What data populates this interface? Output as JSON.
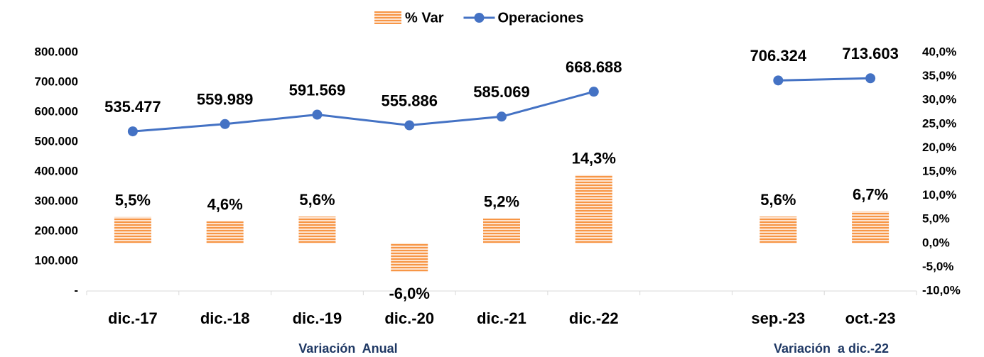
{
  "chart_data": {
    "type": "combo",
    "categories": [
      "dic.-17",
      "dic.-18",
      "dic.-19",
      "dic.-20",
      "dic.-21",
      "dic.-22",
      null,
      "sep.-23",
      "oct.-23"
    ],
    "series": [
      {
        "name": "% Var",
        "type": "bar",
        "axis": "y2",
        "color": "#f79646",
        "values": [
          5.5,
          4.6,
          5.6,
          -6.0,
          5.2,
          14.3,
          null,
          5.6,
          6.7
        ],
        "value_labels": [
          "5,5%",
          "4,6%",
          "5,6%",
          "-6,0%",
          "5,2%",
          "14,3%",
          null,
          "5,6%",
          "6,7%"
        ]
      },
      {
        "name": "Operaciones",
        "type": "line",
        "axis": "y",
        "color": "#4472c4",
        "values": [
          535477,
          559989,
          591569,
          555886,
          585069,
          668688,
          null,
          706324,
          713603
        ],
        "value_labels": [
          "535.477",
          "559.989",
          "591.569",
          "555.886",
          "585.069",
          "668.688",
          null,
          "706.324",
          "713.603"
        ]
      }
    ],
    "ylim": [
      0,
      800000
    ],
    "yticks": [
      {
        "value": 0,
        "label": "-"
      },
      {
        "value": 100000,
        "label": "100.000"
      },
      {
        "value": 200000,
        "label": "200.000"
      },
      {
        "value": 300000,
        "label": "300.000"
      },
      {
        "value": 400000,
        "label": "400.000"
      },
      {
        "value": 500000,
        "label": "500.000"
      },
      {
        "value": 600000,
        "label": "600.000"
      },
      {
        "value": 700000,
        "label": "700.000"
      },
      {
        "value": 800000,
        "label": "800.000"
      }
    ],
    "y2lim": [
      -10,
      40
    ],
    "y2ticks": [
      {
        "value": -10,
        "label": "-10,0%"
      },
      {
        "value": -5,
        "label": "-5,0%"
      },
      {
        "value": 0,
        "label": "0,0%"
      },
      {
        "value": 5,
        "label": "5,0%"
      },
      {
        "value": 10,
        "label": "10,0%"
      },
      {
        "value": 15,
        "label": "15,0%"
      },
      {
        "value": 20,
        "label": "20,0%"
      },
      {
        "value": 25,
        "label": "25,0%"
      },
      {
        "value": 30,
        "label": "30,0%"
      },
      {
        "value": 35,
        "label": "35,0%"
      },
      {
        "value": 40,
        "label": "40,0%"
      }
    ],
    "annotations": [
      "Variación  Anual",
      "Variación  a dic.-22"
    ],
    "legend": "top"
  }
}
